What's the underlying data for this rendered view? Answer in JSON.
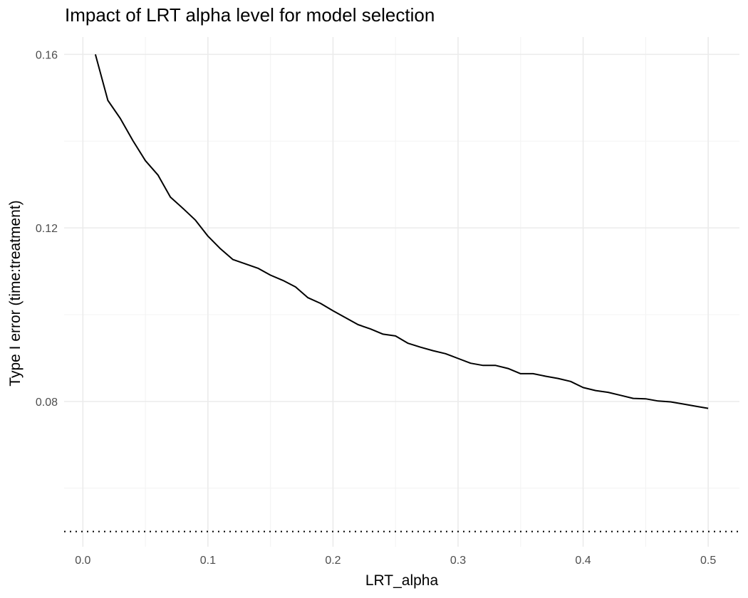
{
  "chart_data": {
    "type": "line",
    "title": "Impact of LRT alpha level for model selection",
    "xlabel": "LRT_alpha",
    "ylabel": "Type I error (time:treatment)",
    "xlim": [
      -0.015,
      0.525
    ],
    "ylim": [
      0.0465,
      0.164
    ],
    "x_ticks": [
      0,
      0.1,
      0.2,
      0.3,
      0.4,
      0.5
    ],
    "x_tick_labels": [
      "0.0",
      "0.1",
      "0.2",
      "0.3",
      "0.4",
      "0.5"
    ],
    "x_minor_ticks": [
      0.05,
      0.15,
      0.25,
      0.35,
      0.45
    ],
    "y_ticks": [
      0.08,
      0.12,
      0.16
    ],
    "y_tick_labels": [
      "0.08",
      "0.12",
      "0.16"
    ],
    "y_minor_ticks": [
      0.06,
      0.1,
      0.14
    ],
    "grid": true,
    "series": [
      {
        "x": [
          0.01,
          0.02,
          0.03,
          0.04,
          0.05,
          0.06,
          0.07,
          0.08,
          0.09,
          0.1,
          0.11,
          0.12,
          0.13,
          0.14,
          0.15,
          0.16,
          0.17,
          0.18,
          0.19,
          0.2,
          0.21,
          0.22,
          0.23,
          0.24,
          0.25,
          0.26,
          0.27,
          0.28,
          0.29,
          0.3,
          0.31,
          0.32,
          0.33,
          0.34,
          0.35,
          0.36,
          0.37,
          0.38,
          0.39,
          0.4,
          0.41,
          0.42,
          0.43,
          0.44,
          0.45,
          0.46,
          0.47,
          0.48,
          0.49,
          0.5
        ],
        "values": [
          0.16,
          0.1494,
          0.1452,
          0.1401,
          0.1355,
          0.1322,
          0.1271,
          0.1245,
          0.1218,
          0.1181,
          0.1152,
          0.1127,
          0.1117,
          0.1107,
          0.1091,
          0.1079,
          0.1064,
          0.1039,
          0.1026,
          0.1009,
          0.0993,
          0.0977,
          0.0967,
          0.0955,
          0.0951,
          0.0934,
          0.0925,
          0.0917,
          0.091,
          0.0899,
          0.0888,
          0.0883,
          0.0883,
          0.0876,
          0.0864,
          0.0864,
          0.0858,
          0.0853,
          0.0846,
          0.0832,
          0.0825,
          0.0821,
          0.0814,
          0.0807,
          0.0806,
          0.0801,
          0.0799,
          0.0794,
          0.0789,
          0.0784
        ]
      }
    ],
    "reference_line": {
      "y": 0.05,
      "style": "dotted"
    }
  }
}
